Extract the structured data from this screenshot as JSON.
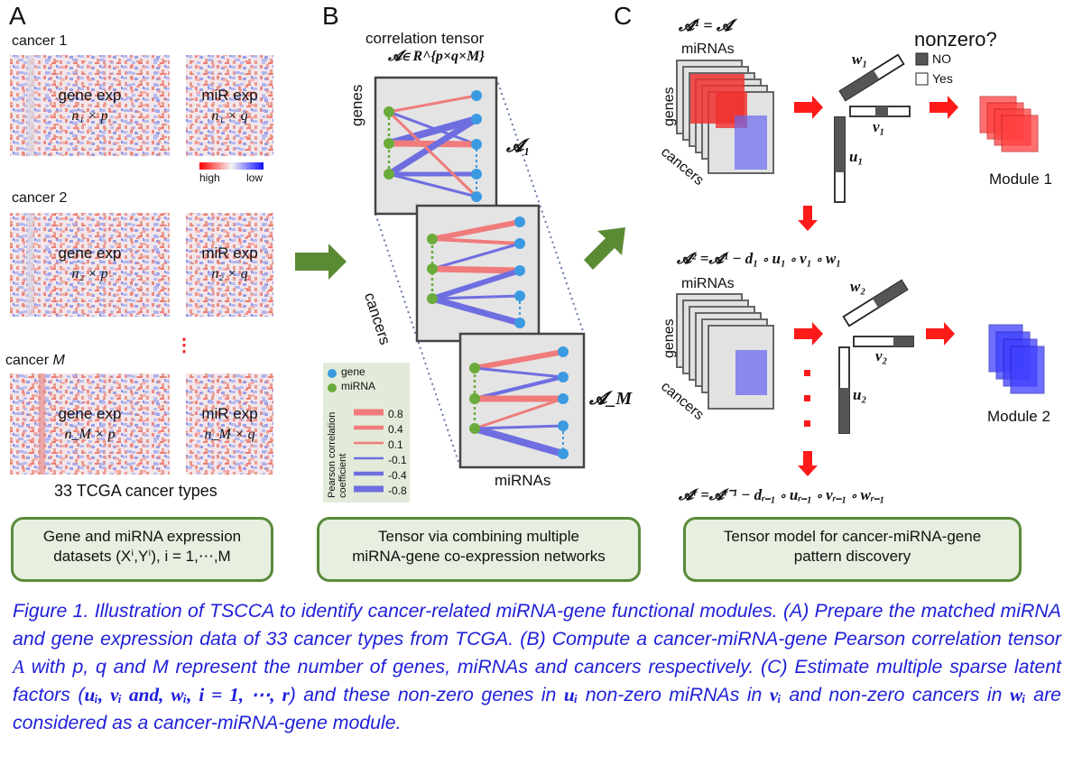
{
  "panel_a": {
    "letter": "A",
    "cancer1": "cancer 1",
    "cancer2": "cancer 2",
    "cancerM_prefix": "cancer ",
    "cancerM_var": "M",
    "gene_exp": "gene exp",
    "mir_exp": "miR exp",
    "dims": [
      "n₁ × p",
      "n₁ × q",
      "n₂ × p",
      "n₂ × q",
      "n_M × p",
      "n_M × q"
    ],
    "colorbar": {
      "high": "high",
      "low": "low"
    },
    "ellipsis": "⋮",
    "footer": "33 TCGA cancer types",
    "box": {
      "line1": "Gene and miRNA expression",
      "line2": "datasets (Xⁱ,Yⁱ), i = 1,⋯,M"
    }
  },
  "panel_b": {
    "letter": "B",
    "title": "correlation tensor",
    "title_math": "𝓐∈ R^{p×q×M}",
    "genes_label": "genes",
    "cancers_label": "cancers",
    "mirnas_label": "miRNAs",
    "slice_labels": [
      "𝓐₁",
      "𝓐_M"
    ],
    "legend": {
      "gene": "gene",
      "mirna": "miRNA",
      "coef_title": "Pearson correlation coefficient",
      "values": [
        "0.8",
        "0.4",
        "0.1",
        "-0.1",
        "-0.4",
        "-0.8"
      ]
    },
    "box": {
      "line1": "Tensor via combining multiple",
      "line2": "miRNA-gene co-expression networks"
    }
  },
  "panel_c": {
    "letter": "C",
    "a1_eq": "𝓐¹ = 𝓐",
    "mirnas_label": "miRNAs",
    "genes_label": "genes",
    "cancers_label": "cancers",
    "nonzero_title": "nonzero?",
    "nonzero_no": "NO",
    "nonzero_yes": "Yes",
    "w1": "w₁",
    "v1": "v₁",
    "u1": "u₁",
    "w2": "w₂",
    "v2": "v₂",
    "u2": "u₂",
    "module1": "Module 1",
    "module2": "Module 2",
    "eq2": "𝓐² =𝓐¹ − d₁ ∘ u₁ ∘ v₁ ∘ w₁",
    "eqr": "𝓐ʳ =𝓐ʳ⁻¹ − dᵣ₋₁ ∘ uᵣ₋₁ ∘ vᵣ₋₁ ∘ wᵣ₋₁",
    "box": {
      "line1": "Tensor model for cancer-miRNA-gene",
      "line2": "pattern discovery"
    }
  },
  "caption": {
    "p1": "Figure 1. Illustration of TSCCA to identify cancer-related miRNA-gene functional modules. (A) Prepare the matched miRNA and gene expression data of 33 cancer types from TCGA. (B) Compute a cancer-miRNA-gene Pearson correlation tensor ",
    "m1": "A",
    "p2": " with p, q and M represent the number of genes, miRNAs and cancers respectively. (C) Estimate multiple sparse latent factors (",
    "m2": "uᵢ, vᵢ and, wᵢ, i = 1, ⋯, r",
    "p3": ") and these non-zero genes in ",
    "m3": "uᵢ",
    "p4": " non-zero miRNAs in ",
    "m4": "vᵢ",
    "p5": " and non-zero cancers in ",
    "m5": "wᵢ",
    "p6": " are considered as a cancer-miRNA-gene module."
  },
  "colors": {
    "green_arrow": "#5b8a34",
    "red_arrow": "#ff1a1a",
    "box_border": "#5a8a3a",
    "box_fill": "#e6efe0",
    "caption": "#1f1fd9",
    "pos_edge": "#f07b7b",
    "neg_edge": "#6e6ee0",
    "gene_node": "#3b9ae1",
    "mirna_node": "#6aab3b"
  }
}
